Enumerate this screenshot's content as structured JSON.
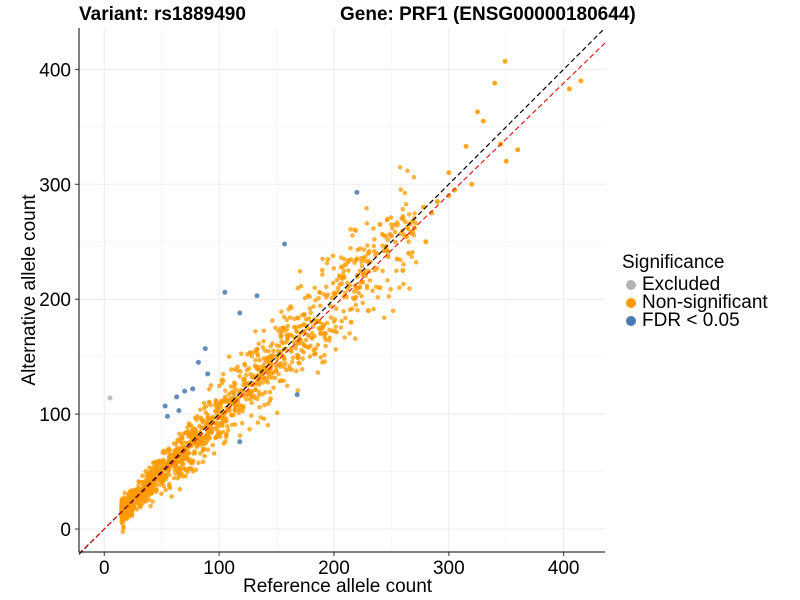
{
  "header": {
    "variant_label": "Variant: rs1889490",
    "gene_label": "Gene: PRF1 (ENSG00000180644)"
  },
  "legend": {
    "title": "Significance",
    "items": [
      {
        "label": "Excluded",
        "color": "#b3b3b3"
      },
      {
        "label": "Non-significant",
        "color": "#ff9900"
      },
      {
        "label": "FDR < 0.05",
        "color": "#4a79b0"
      }
    ]
  },
  "chart_data": {
    "type": "scatter",
    "title": "Variant: rs1889490    Gene: PRF1 (ENSG00000180644)",
    "xlabel": "Reference allele count",
    "ylabel": "Alternative allele count",
    "xlim": [
      -22,
      436
    ],
    "ylim": [
      -20,
      436
    ],
    "xticks": [
      0,
      100,
      200,
      300,
      400
    ],
    "yticks": [
      0,
      100,
      200,
      300,
      400
    ],
    "grid": true,
    "legend_position": "right",
    "reference_lines": [
      {
        "name": "identity",
        "slope": 1.0,
        "intercept": 0,
        "color": "#000000",
        "style": "dashed"
      },
      {
        "name": "fit",
        "slope": 0.97,
        "intercept": 0,
        "color": "#e41a1c",
        "style": "dashed"
      }
    ],
    "series": [
      {
        "name": "Excluded",
        "color": "#b3b3b3",
        "points": [
          [
            5,
            114
          ]
        ]
      },
      {
        "name": "FDR < 0.05",
        "color": "#4a79b0",
        "points": [
          [
            220,
            293
          ],
          [
            157,
            248
          ],
          [
            105,
            206
          ],
          [
            133,
            203
          ],
          [
            118,
            188
          ],
          [
            88,
            157
          ],
          [
            82,
            145
          ],
          [
            90,
            135
          ],
          [
            77,
            122
          ],
          [
            70,
            120
          ],
          [
            63,
            115
          ],
          [
            53,
            107
          ],
          [
            65,
            103
          ],
          [
            55,
            98
          ],
          [
            168,
            117
          ],
          [
            118,
            76
          ]
        ]
      },
      {
        "name": "Non-significant",
        "color": "#ff9900",
        "points": [
          [
            349,
            407
          ],
          [
            340,
            388
          ],
          [
            405,
            383
          ],
          [
            415,
            390
          ],
          [
            325,
            363
          ],
          [
            330,
            355
          ],
          [
            315,
            333
          ],
          [
            345,
            335
          ],
          [
            360,
            330
          ],
          [
            300,
            310
          ],
          [
            278,
            280
          ],
          [
            290,
            285
          ],
          [
            260,
            270
          ],
          [
            240,
            265
          ],
          [
            250,
            255
          ],
          [
            230,
            240
          ],
          [
            220,
            235
          ],
          [
            210,
            230
          ],
          [
            225,
            215
          ],
          [
            200,
            205
          ],
          [
            300,
            290
          ],
          [
            320,
            300
          ],
          [
            350,
            320
          ],
          [
            265,
            240
          ],
          [
            280,
            250
          ],
          [
            240,
            210
          ],
          [
            260,
            225
          ],
          [
            230,
            190
          ],
          [
            215,
            180
          ],
          [
            190,
            175
          ],
          [
            245,
            255
          ],
          [
            270,
            262
          ],
          [
            285,
            275
          ],
          [
            305,
            295
          ],
          [
            255,
            235
          ]
        ]
      }
    ]
  }
}
